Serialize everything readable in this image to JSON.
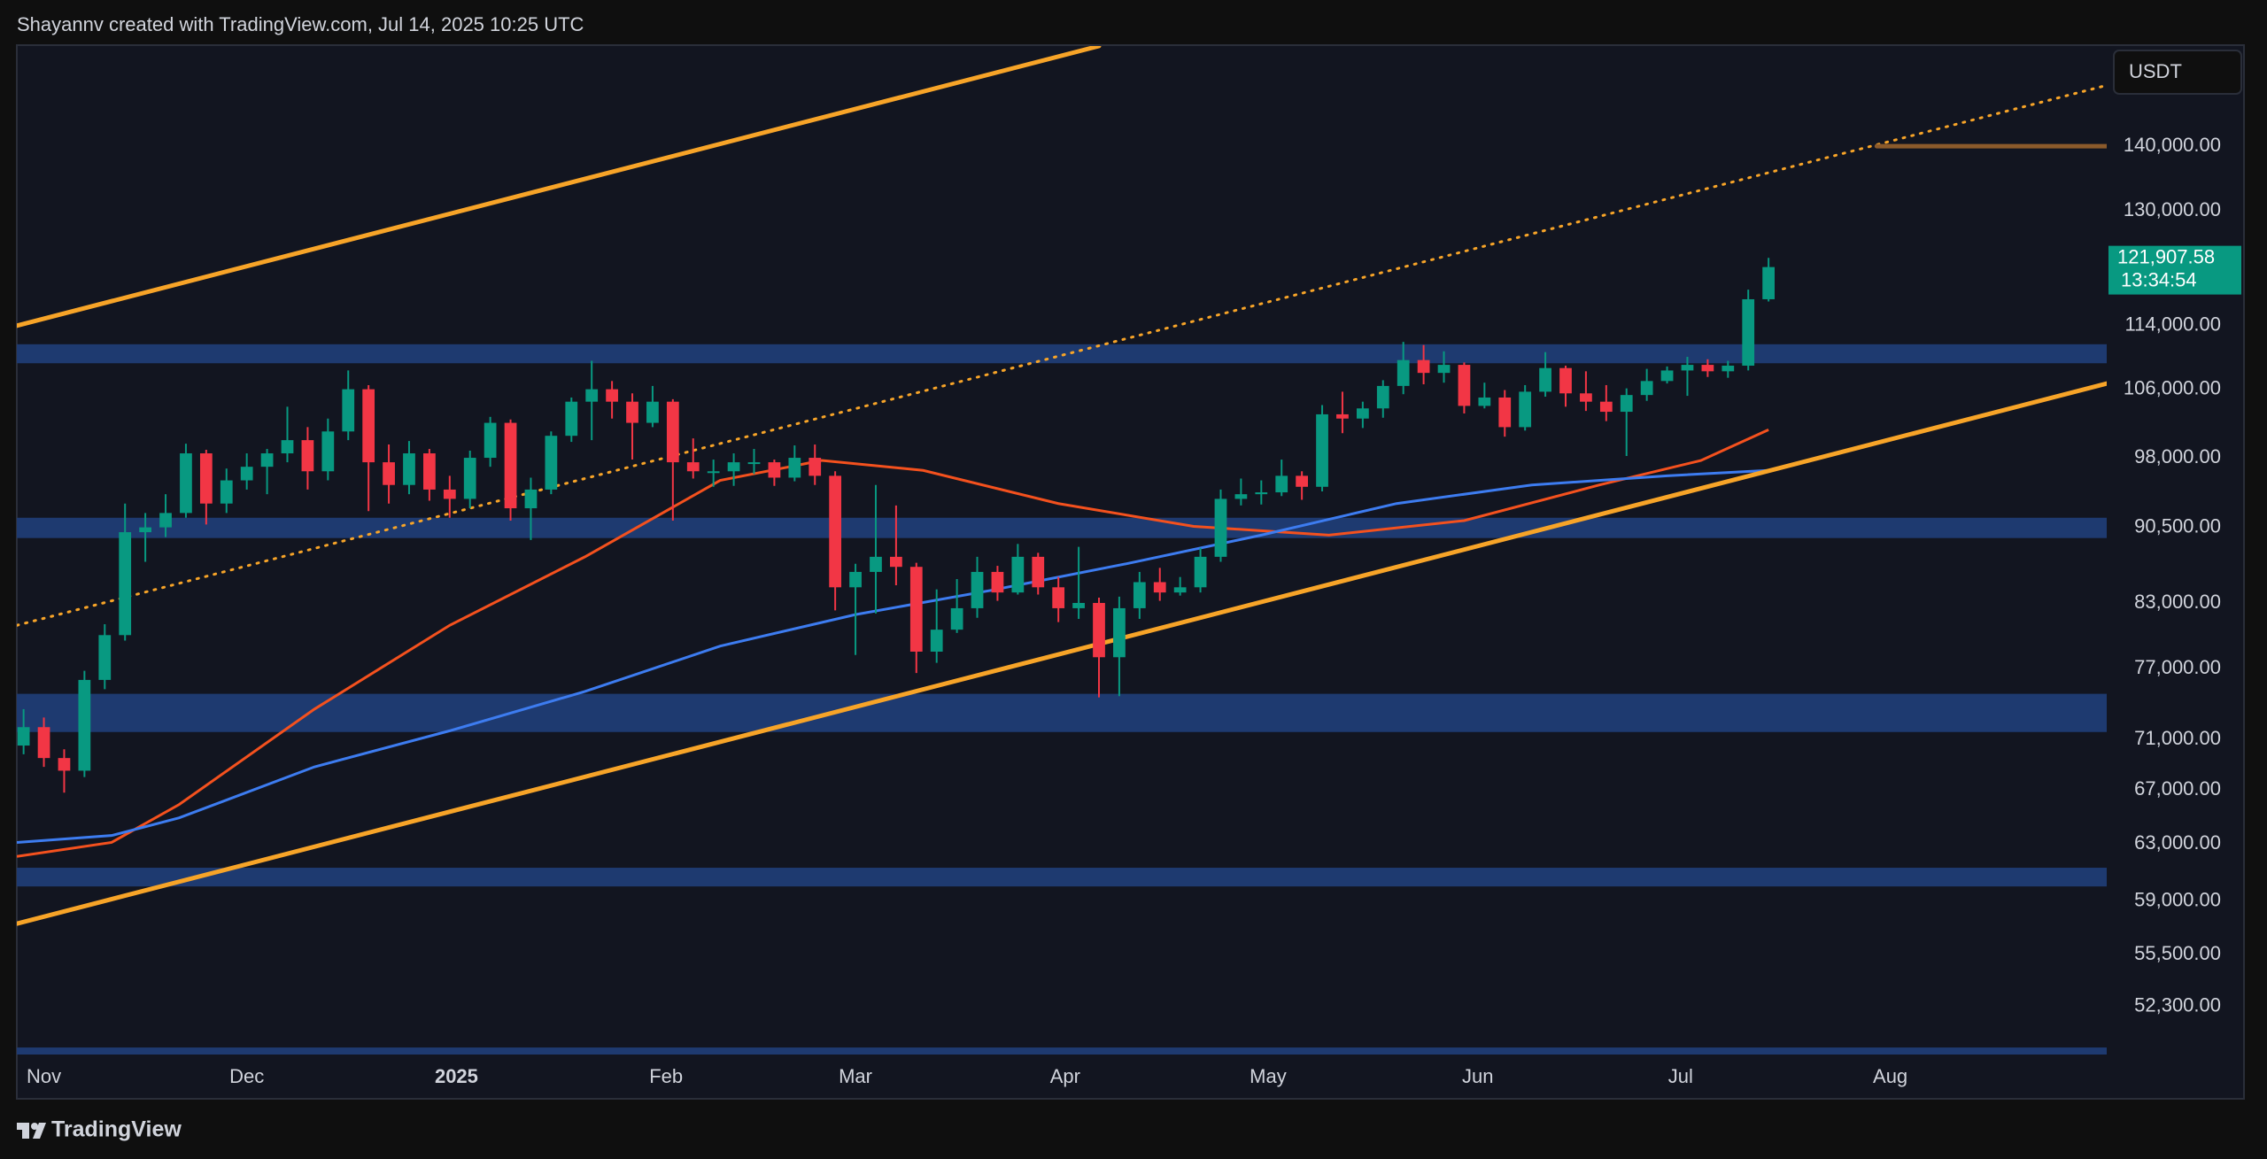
{
  "attribution": "Shayannv created with TradingView.com, Jul 14, 2025 10:25 UTC",
  "brand": "TradingView",
  "chart_data": {
    "type": "candlestick",
    "currency": "USDT",
    "last_price_label": "121,907.58",
    "countdown": "13:34:54",
    "log_scale": true,
    "grid": false,
    "up_color": "#089981",
    "down_color": "#f23645",
    "xlim": [
      -4,
      305
    ],
    "xticks": [
      {
        "value": 0,
        "label": "Nov"
      },
      {
        "value": 30,
        "label": "Dec"
      },
      {
        "value": 61,
        "label": "2025"
      },
      {
        "value": 92,
        "label": "Feb"
      },
      {
        "value": 120,
        "label": "Mar"
      },
      {
        "value": 151,
        "label": "Apr"
      },
      {
        "value": 181,
        "label": "May"
      },
      {
        "value": 212,
        "label": "Jun"
      },
      {
        "value": 242,
        "label": "Jul"
      },
      {
        "value": 273,
        "label": "Aug"
      }
    ],
    "ylim": [
      49200,
      157000
    ],
    "yticks": [
      {
        "value": 140000,
        "label": "140,000.00"
      },
      {
        "value": 130000,
        "label": "130,000.00"
      },
      {
        "value": 114000,
        "label": "114,000.00"
      },
      {
        "value": 106000,
        "label": "106,000.00"
      },
      {
        "value": 98000,
        "label": "98,000.00"
      },
      {
        "value": 90500,
        "label": "90,500.00"
      },
      {
        "value": 83000,
        "label": "83,000.00"
      },
      {
        "value": 77000,
        "label": "77,000.00"
      },
      {
        "value": 71000,
        "label": "71,000.00"
      },
      {
        "value": 67000,
        "label": "67,000.00"
      },
      {
        "value": 63000,
        "label": "63,000.00"
      },
      {
        "value": 59000,
        "label": "59,000.00"
      },
      {
        "value": 55500,
        "label": "55,500.00"
      },
      {
        "value": 52300,
        "label": "52,300.00"
      }
    ],
    "x": [
      -3,
      0,
      3,
      6,
      9,
      12,
      15,
      18,
      21,
      24,
      27,
      30,
      33,
      36,
      39,
      42,
      45,
      48,
      51,
      54,
      57,
      60,
      63,
      66,
      69,
      72,
      75,
      78,
      81,
      84,
      87,
      90,
      93,
      96,
      99,
      102,
      105,
      108,
      111,
      114,
      117,
      120,
      123,
      126,
      129,
      132,
      135,
      138,
      141,
      144,
      147,
      150,
      153,
      156,
      159,
      162,
      165,
      168,
      171,
      174,
      177,
      180,
      183,
      186,
      189,
      192,
      195,
      198,
      201,
      204,
      207,
      210,
      213,
      216,
      219,
      222,
      225,
      228,
      231,
      234,
      237,
      240,
      243,
      246,
      249,
      252,
      255
    ],
    "open": [
      70500,
      72000,
      69500,
      68500,
      76000,
      80000,
      90000,
      90500,
      92000,
      98500,
      93000,
      95500,
      97000,
      98500,
      100000,
      96500,
      101000,
      106000,
      97500,
      95000,
      98500,
      94500,
      93500,
      98000,
      102000,
      92500,
      94500,
      100500,
      104500,
      106000,
      104500,
      102000,
      104500,
      97500,
      96500,
      96500,
      97500,
      97500,
      95800,
      98000,
      96000,
      84500,
      86000,
      87500,
      86500,
      78500,
      80500,
      82500,
      86000,
      84000,
      87500,
      84500,
      82500,
      83000,
      78000,
      82500,
      85000,
      84000,
      84500,
      87500,
      93500,
      94000,
      94200,
      96000,
      94800,
      103000,
      102500,
      103700,
      106400,
      109600,
      108000,
      109000,
      104000,
      105000,
      101500,
      105700,
      108600,
      105500,
      104500,
      103300,
      105300,
      107000,
      108300,
      109000,
      108200,
      108900,
      117500
    ],
    "high": [
      73500,
      72800,
      70200,
      76800,
      81000,
      93000,
      92000,
      94000,
      99600,
      98900,
      96800,
      98500,
      99000,
      103900,
      101500,
      102500,
      108300,
      106500,
      99500,
      99900,
      99000,
      96000,
      98800,
      102700,
      102400,
      95800,
      101000,
      105000,
      109500,
      107000,
      105500,
      106400,
      104800,
      100200,
      97800,
      98500,
      99000,
      97800,
      99400,
      99500,
      96500,
      86800,
      95000,
      92800,
      86900,
      84300,
      85300,
      87500,
      86600,
      88800,
      87900,
      85500,
      88500,
      83500,
      83600,
      86000,
      86400,
      85500,
      88400,
      94500,
      95700,
      95500,
      97800,
      96500,
      104100,
      105700,
      104500,
      107100,
      111900,
      111500,
      110700,
      109300,
      106800,
      105900,
      106500,
      110600,
      108900,
      108200,
      106500,
      106100,
      108500,
      108800,
      110000,
      109700,
      109500,
      118800,
      123200
    ],
    "low": [
      69800,
      68800,
      66800,
      68000,
      75200,
      79500,
      87000,
      89500,
      91500,
      90800,
      92000,
      94500,
      94000,
      97500,
      94500,
      95500,
      100000,
      92200,
      93000,
      94000,
      93300,
      91500,
      92500,
      97000,
      91200,
      89200,
      94000,
      99800,
      100000,
      102500,
      97800,
      101500,
      91200,
      95700,
      94800,
      94900,
      96200,
      94900,
      95400,
      95000,
      82300,
      78200,
      82000,
      84700,
      76600,
      77500,
      80200,
      81600,
      83200,
      83800,
      83800,
      81200,
      81500,
      74500,
      74600,
      81500,
      83200,
      83700,
      84000,
      87000,
      92800,
      92900,
      93800,
      93400,
      94300,
      100800,
      101400,
      102600,
      105400,
      106600,
      106800,
      103100,
      103700,
      100400,
      101100,
      105100,
      103900,
      103400,
      102200,
      98200,
      104600,
      106700,
      105200,
      107500,
      107400,
      108300,
      117200
    ],
    "close": [
      72000,
      69500,
      68500,
      76000,
      80000,
      90000,
      90500,
      92000,
      98500,
      93000,
      95500,
      97000,
      98500,
      100000,
      96500,
      101000,
      106000,
      97500,
      95000,
      98500,
      94500,
      93500,
      98000,
      102000,
      92500,
      94500,
      100500,
      104500,
      106000,
      104500,
      102000,
      104500,
      97500,
      96500,
      96500,
      97500,
      97500,
      95800,
      98000,
      96000,
      84500,
      86000,
      87500,
      86500,
      78500,
      80500,
      82500,
      86000,
      84000,
      87500,
      84500,
      82500,
      83000,
      78000,
      82500,
      85000,
      84000,
      84500,
      87500,
      93500,
      94000,
      94200,
      96000,
      94800,
      103000,
      102500,
      103700,
      106400,
      109600,
      108000,
      109000,
      104000,
      105000,
      101500,
      105700,
      108600,
      105500,
      104500,
      103300,
      105300,
      107000,
      108300,
      109000,
      108200,
      108900,
      117500,
      121907.58
    ],
    "zone_color": "#1e3a70",
    "zones": [
      {
        "low": 109200,
        "high": 111600
      },
      {
        "low": 89400,
        "high": 91500
      },
      {
        "low": 71600,
        "high": 74800
      },
      {
        "low": 60000,
        "high": 61300
      },
      {
        "low": 49500,
        "high": 49900
      }
    ],
    "overlays": [
      {
        "color": "#f4511e",
        "x": [
          -4,
          10,
          20,
          40,
          60,
          80,
          100,
          115,
          130,
          150,
          170,
          190,
          210,
          230,
          245,
          255
        ],
        "values": [
          62100,
          63100,
          65900,
          73500,
          80900,
          87500,
          95500,
          97700,
          96600,
          93000,
          90600,
          89700,
          91200,
          95000,
          97700,
          101200
        ]
      },
      {
        "color": "#3d7cf0",
        "x": [
          -4,
          10,
          20,
          40,
          60,
          80,
          100,
          120,
          140,
          160,
          180,
          200,
          220,
          240,
          255
        ],
        "values": [
          63100,
          63600,
          64900,
          68800,
          71700,
          75000,
          79000,
          81900,
          84200,
          86800,
          89700,
          93000,
          95000,
          96000,
          96600
        ]
      }
    ],
    "trendlines": [
      {
        "color": "#f7a428",
        "style": "solid",
        "x": [
          -4,
          156
        ],
        "y": [
          114000,
          157000
        ]
      },
      {
        "color": "#f7a428",
        "style": "solid",
        "x": [
          -4,
          305
        ],
        "y": [
          57500,
          106700
        ]
      },
      {
        "color": "#f7a428",
        "style": "dotted",
        "x": [
          -4,
          305
        ],
        "y": [
          80900,
          150100
        ]
      },
      {
        "color": "#8b5a2b",
        "style": "solid",
        "x": [
          271,
          305
        ],
        "y": [
          140000,
          140000
        ]
      }
    ]
  }
}
